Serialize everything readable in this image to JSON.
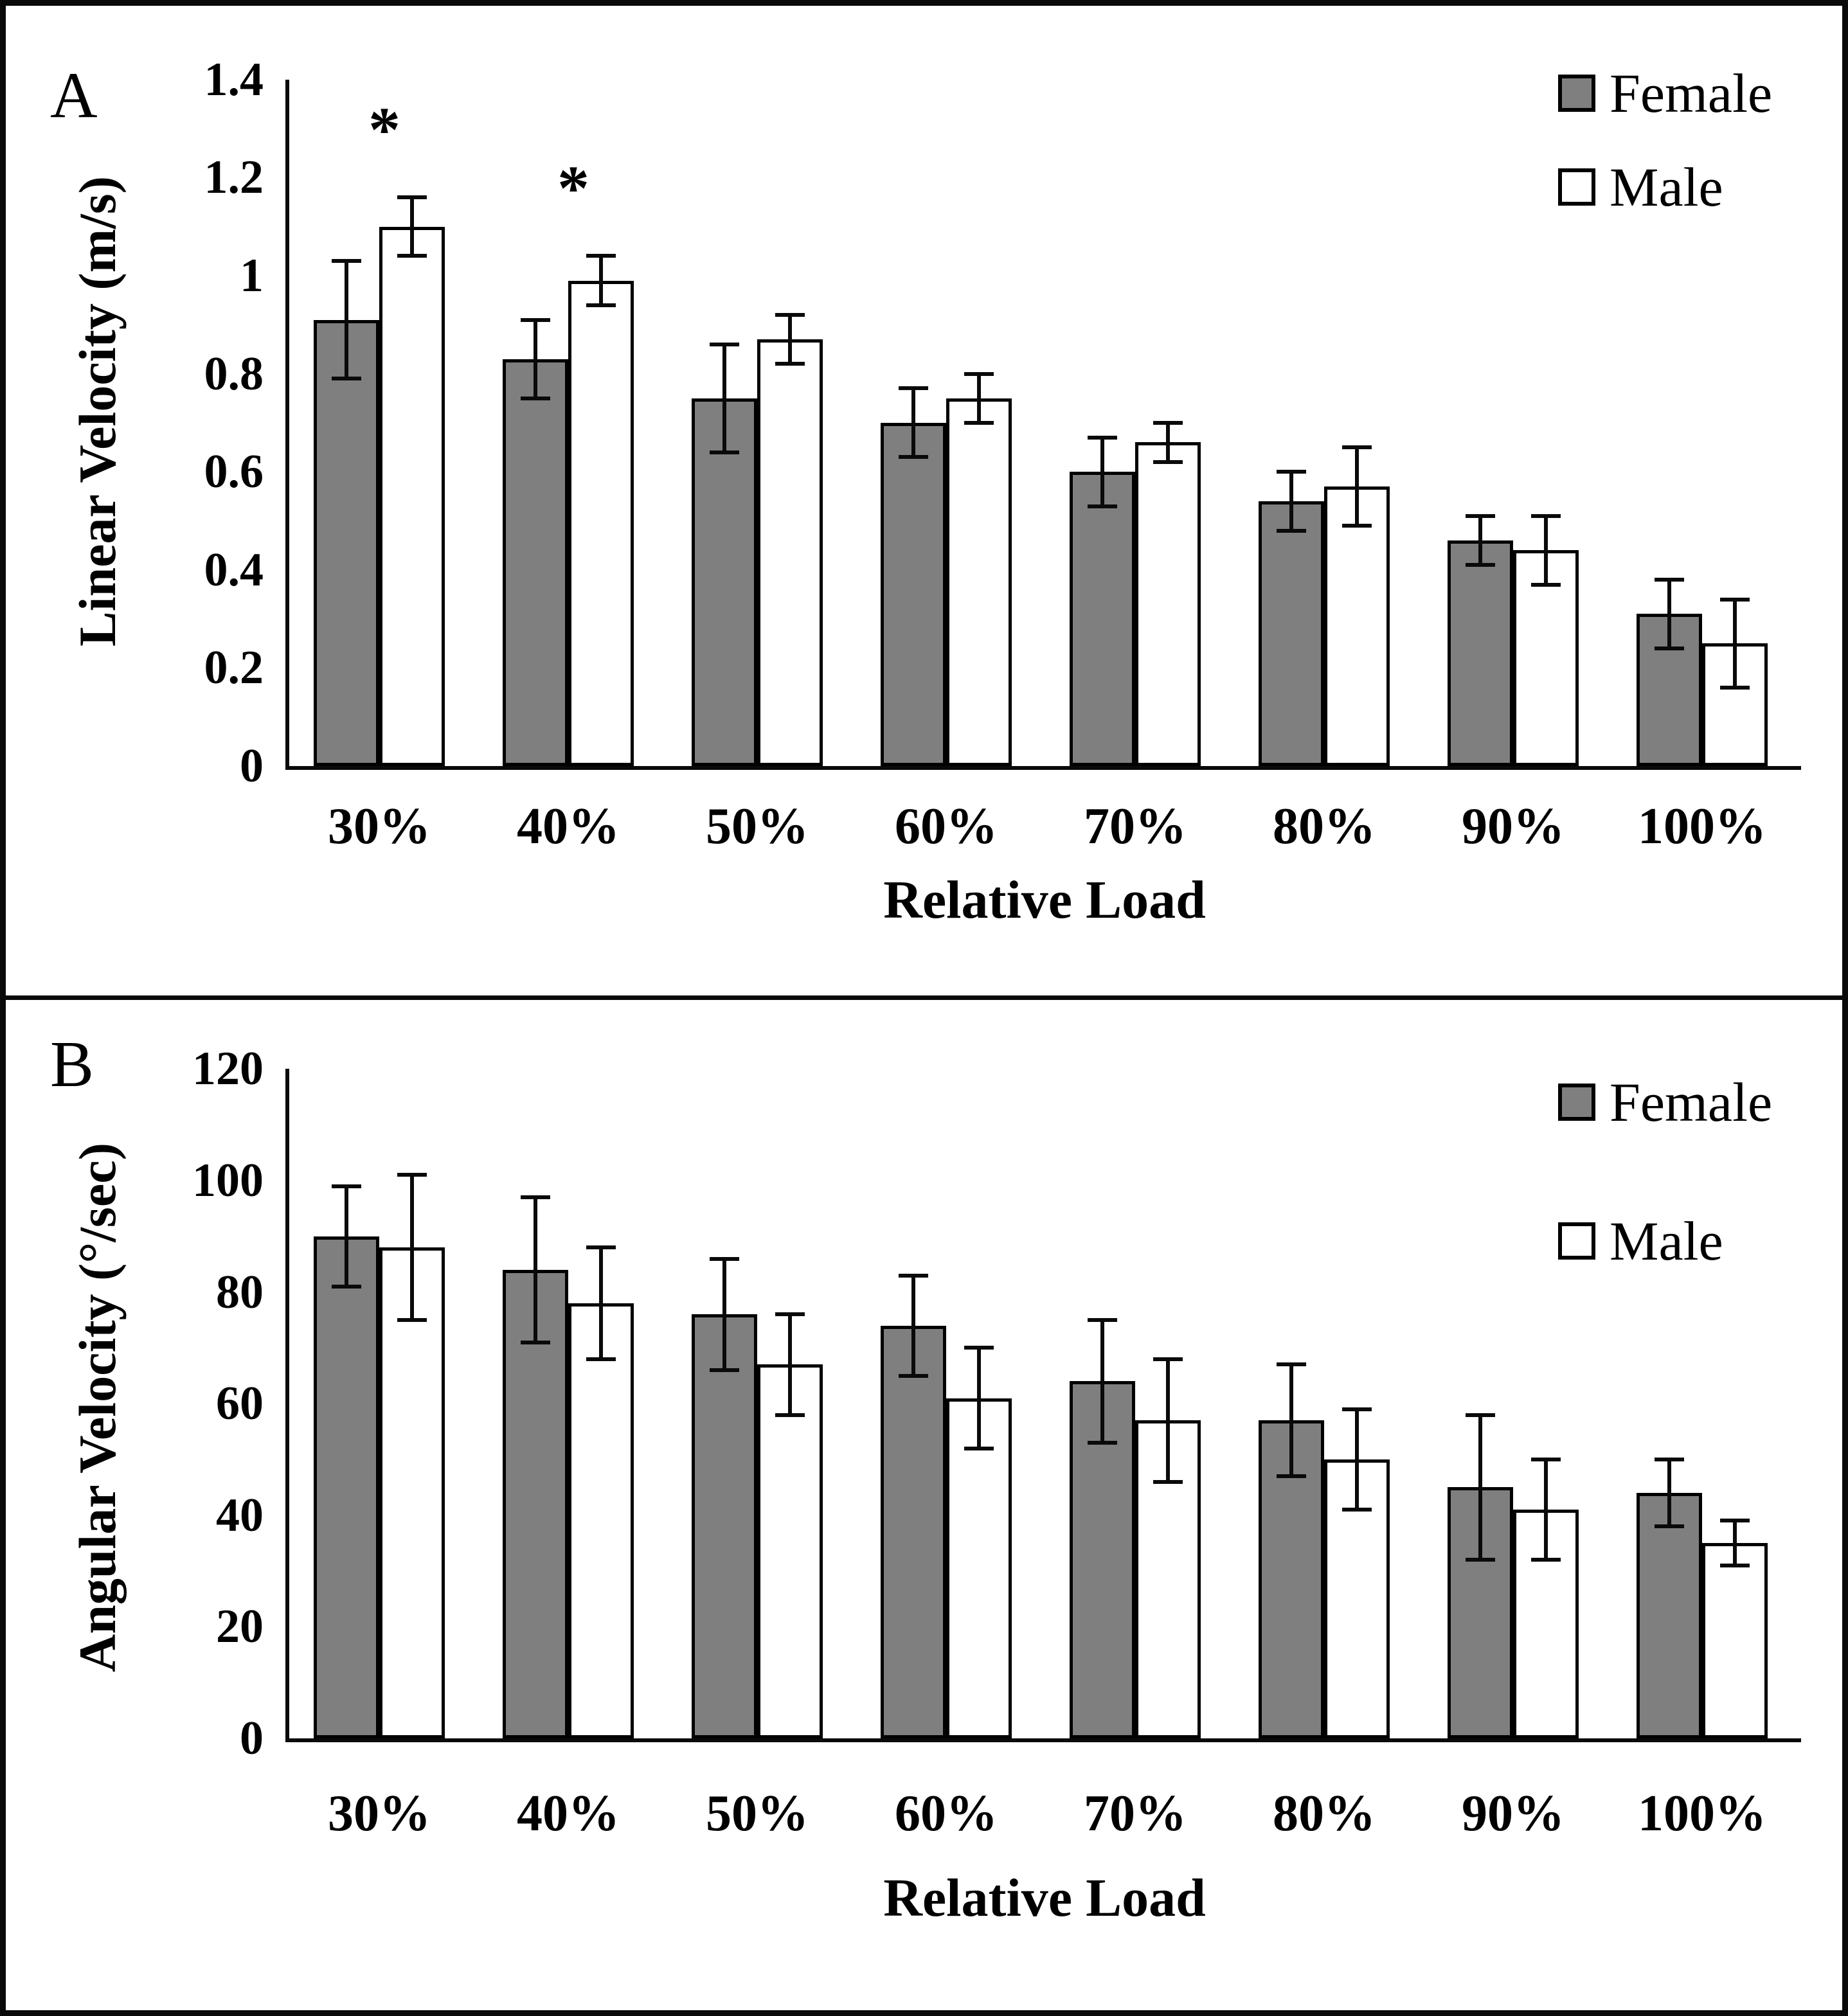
{
  "figure": {
    "panel_count": 2,
    "accent_colors": {
      "female_fill": "#7f7f7f",
      "male_fill": "#ffffff",
      "ink": "#0a0a0a"
    }
  },
  "chart_data": [
    {
      "type": "bar",
      "panel_label": "A",
      "title": "",
      "ylabel": "Linear Velocity (m/s)",
      "xlabel": "Relative Load",
      "categories": [
        "30%",
        "40%",
        "50%",
        "60%",
        "70%",
        "80%",
        "90%",
        "100%"
      ],
      "ylim": [
        0,
        1.4
      ],
      "ytick_labels": [
        "1.4",
        "1.2",
        "1",
        "0.8",
        "0.6",
        "0.4",
        "0.2",
        "0"
      ],
      "grid": false,
      "legend_position": "top-right",
      "legend": [
        "Female",
        "Male"
      ],
      "series": [
        {
          "name": "Female",
          "fill": "#7f7f7f",
          "values": [
            0.91,
            0.83,
            0.75,
            0.7,
            0.6,
            0.54,
            0.46,
            0.31
          ],
          "errors": [
            0.12,
            0.08,
            0.11,
            0.07,
            0.07,
            0.06,
            0.05,
            0.07
          ]
        },
        {
          "name": "Male",
          "fill": "#ffffff",
          "values": [
            1.1,
            0.99,
            0.87,
            0.75,
            0.66,
            0.57,
            0.44,
            0.25
          ],
          "errors": [
            0.06,
            0.05,
            0.05,
            0.05,
            0.04,
            0.08,
            0.07,
            0.09
          ]
        }
      ],
      "significance_marks": [
        {
          "category": "30%",
          "series": "Male",
          "symbol": "*"
        },
        {
          "category": "40%",
          "series": "Male",
          "symbol": "*"
        }
      ]
    },
    {
      "type": "bar",
      "panel_label": "B",
      "title": "",
      "ylabel": "Angular Velocity (°/sec)",
      "xlabel": "Relative Load",
      "categories": [
        "30%",
        "40%",
        "50%",
        "60%",
        "70%",
        "80%",
        "90%",
        "100%"
      ],
      "ylim": [
        0,
        120
      ],
      "ytick_labels": [
        "120",
        "100",
        "80",
        "60",
        "40",
        "20",
        "0"
      ],
      "grid": false,
      "legend_position": "top-right",
      "legend": [
        "Female",
        "Male"
      ],
      "series": [
        {
          "name": "Female",
          "fill": "#7f7f7f",
          "values": [
            90,
            84,
            76,
            74,
            64,
            57,
            45,
            44
          ],
          "errors": [
            9,
            13,
            10,
            9,
            11,
            10,
            13,
            6
          ]
        },
        {
          "name": "Male",
          "fill": "#ffffff",
          "values": [
            88,
            78,
            67,
            61,
            57,
            50,
            41,
            35
          ],
          "errors": [
            13,
            10,
            9,
            9,
            11,
            9,
            9,
            4
          ]
        }
      ],
      "significance_marks": []
    }
  ]
}
